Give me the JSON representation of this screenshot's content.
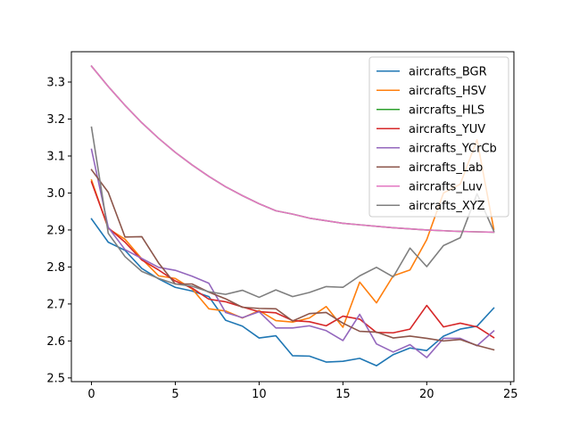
{
  "chart_data": {
    "type": "line",
    "title": "",
    "xlabel": "",
    "ylabel": "",
    "xlim": [
      -1.2,
      25.2
    ],
    "ylim": [
      2.49,
      3.382
    ],
    "x_ticks": [
      0,
      5,
      10,
      15,
      20,
      25
    ],
    "y_ticks": [
      2.5,
      2.6,
      2.7,
      2.8,
      2.9,
      3.0,
      3.1,
      3.2,
      3.3
    ],
    "grid": false,
    "legend_position": "top-right",
    "x": [
      0,
      1,
      2,
      3,
      4,
      5,
      6,
      7,
      8,
      9,
      10,
      11,
      12,
      13,
      14,
      15,
      16,
      17,
      18,
      19,
      20,
      21,
      22,
      23,
      24
    ],
    "series": [
      {
        "name": "aircrafts_BGR",
        "color": "#1f77b4",
        "values": [
          2.93,
          2.867,
          2.845,
          2.796,
          2.768,
          2.745,
          2.735,
          2.72,
          2.656,
          2.64,
          2.608,
          2.614,
          2.56,
          2.559,
          2.543,
          2.545,
          2.553,
          2.533,
          2.563,
          2.581,
          2.574,
          2.613,
          2.632,
          2.64,
          2.689
        ]
      },
      {
        "name": "aircrafts_HSV",
        "color": "#ff7f0e",
        "values": [
          3.035,
          2.904,
          2.875,
          2.822,
          2.776,
          2.769,
          2.741,
          2.687,
          2.681,
          2.662,
          2.682,
          2.655,
          2.651,
          2.662,
          2.693,
          2.637,
          2.759,
          2.703,
          2.776,
          2.792,
          2.874,
          3.0,
          3.024,
          3.144,
          2.902
        ]
      },
      {
        "name": "aircrafts_HLS",
        "color": "#2ca02c",
        "values": [
          3.343,
          3.288,
          3.237,
          3.19,
          3.148,
          3.11,
          3.076,
          3.045,
          3.017,
          2.993,
          2.971,
          2.952,
          2.943,
          2.932,
          2.925,
          2.918,
          2.914,
          2.91,
          2.906,
          2.903,
          2.9,
          2.898,
          2.896,
          2.895,
          2.894
        ]
      },
      {
        "name": "aircrafts_YUV",
        "color": "#d62728",
        "values": [
          3.03,
          2.906,
          2.867,
          2.819,
          2.792,
          2.762,
          2.743,
          2.713,
          2.706,
          2.692,
          2.679,
          2.676,
          2.655,
          2.652,
          2.641,
          2.667,
          2.659,
          2.623,
          2.622,
          2.632,
          2.696,
          2.638,
          2.648,
          2.638,
          2.609
        ]
      },
      {
        "name": "aircrafts_YCrCb",
        "color": "#9467bd",
        "values": [
          3.118,
          2.907,
          2.847,
          2.823,
          2.799,
          2.791,
          2.775,
          2.756,
          2.677,
          2.663,
          2.679,
          2.635,
          2.635,
          2.641,
          2.628,
          2.601,
          2.672,
          2.592,
          2.57,
          2.59,
          2.555,
          2.607,
          2.607,
          2.587,
          2.627
        ]
      },
      {
        "name": "aircrafts_Lab",
        "color": "#8c564b",
        "values": [
          3.063,
          3.002,
          2.881,
          2.882,
          2.811,
          2.754,
          2.754,
          2.732,
          2.714,
          2.691,
          2.688,
          2.687,
          2.654,
          2.674,
          2.677,
          2.648,
          2.626,
          2.624,
          2.608,
          2.613,
          2.607,
          2.6,
          2.604,
          2.588,
          2.576
        ]
      },
      {
        "name": "aircrafts_Luv",
        "color": "#e377c2",
        "values": [
          3.343,
          3.288,
          3.237,
          3.19,
          3.148,
          3.11,
          3.076,
          3.045,
          3.017,
          2.993,
          2.971,
          2.952,
          2.943,
          2.932,
          2.925,
          2.918,
          2.914,
          2.91,
          2.906,
          2.903,
          2.9,
          2.898,
          2.896,
          2.895,
          2.894
        ]
      },
      {
        "name": "aircrafts_XYZ",
        "color": "#7f7f7f",
        "values": [
          3.178,
          2.891,
          2.828,
          2.788,
          2.769,
          2.754,
          2.748,
          2.733,
          2.726,
          2.737,
          2.718,
          2.738,
          2.72,
          2.731,
          2.747,
          2.745,
          2.776,
          2.799,
          2.773,
          2.851,
          2.801,
          2.858,
          2.879,
          2.998,
          2.897
        ]
      }
    ]
  }
}
